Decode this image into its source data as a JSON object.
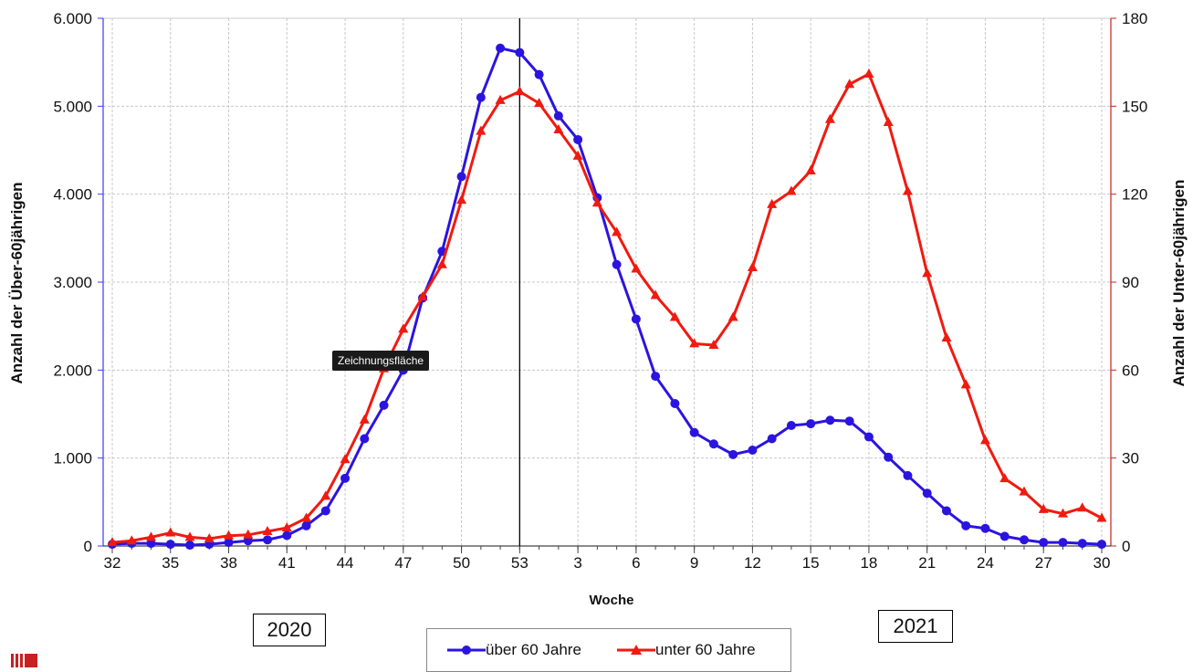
{
  "chart_data": {
    "type": "line",
    "xlabel": "Woche",
    "y_left_label": "Anzahl der Über-60jährigen",
    "y_right_label": "Anzahl der Unter-60jährigen",
    "y_left_range": [
      0,
      6000
    ],
    "y_right_range": [
      0,
      180
    ],
    "y_left_ticks": [
      "0",
      "1.000",
      "2.000",
      "3.000",
      "4.000",
      "5.000",
      "6.000"
    ],
    "y_right_ticks": [
      "0",
      "30",
      "60",
      "90",
      "120",
      "150",
      "180"
    ],
    "grid": true,
    "legend_position": "bottom-center",
    "weeks": [
      "32",
      "33",
      "34",
      "35",
      "36",
      "37",
      "38",
      "39",
      "40",
      "41",
      "42",
      "43",
      "44",
      "45",
      "46",
      "47",
      "48",
      "49",
      "50",
      "51",
      "52",
      "53",
      "1",
      "2",
      "3",
      "4",
      "5",
      "6",
      "7",
      "8",
      "9",
      "10",
      "11",
      "12",
      "13",
      "14",
      "15",
      "16",
      "17",
      "18",
      "19",
      "20",
      "21",
      "22",
      "23",
      "24",
      "25",
      "26",
      "27",
      "28",
      "29",
      "30"
    ],
    "x_tick_labels": [
      "32",
      "35",
      "38",
      "41",
      "44",
      "47",
      "50",
      "53",
      "3",
      "6",
      "9",
      "12",
      "15",
      "18",
      "21",
      "24",
      "27",
      "30"
    ],
    "series": [
      {
        "name": "über 60 Jahre",
        "color": "#2b14e0",
        "marker": "circle",
        "axis": "left",
        "values": [
          20,
          30,
          30,
          20,
          10,
          20,
          40,
          60,
          70,
          120,
          230,
          400,
          770,
          1220,
          1600,
          2000,
          2820,
          3350,
          4200,
          5100,
          5660,
          5610,
          5360,
          4890,
          4620,
          3960,
          3200,
          2580,
          1930,
          1620,
          1290,
          1160,
          1040,
          1090,
          1220,
          1370,
          1390,
          1430,
          1420,
          1240,
          1010,
          800,
          600,
          400,
          230,
          200,
          110,
          70,
          40,
          40,
          30,
          20
        ]
      },
      {
        "name": "unter 60 Jahre",
        "color": "#f01a10",
        "marker": "triangle",
        "axis": "right",
        "values": [
          1.2,
          1.8,
          3.0,
          4.5,
          3.0,
          2.5,
          3.5,
          3.8,
          5.0,
          6.2,
          9.5,
          17.0,
          29.5,
          43.0,
          60.5,
          74.0,
          85.0,
          96.0,
          118.0,
          141.5,
          152.0,
          155.0,
          151.0,
          142.0,
          133.0,
          117.0,
          107.0,
          94.5,
          85.5,
          78.0,
          69.0,
          68.5,
          78.0,
          95.0,
          116.5,
          121.0,
          128.0,
          145.5,
          157.5,
          161.0,
          144.5,
          121.0,
          93.0,
          71.0,
          55.0,
          36.0,
          23.0,
          18.5,
          12.5,
          11.0,
          13.0,
          9.5
        ]
      }
    ],
    "annotations": [
      "2020",
      "2021"
    ]
  },
  "tooltip": "Zeichnungsfläche",
  "years": {
    "left": "2020",
    "right": "2021"
  },
  "colors": {
    "left_axis": "#3a3aff",
    "right_axis": "#c82020",
    "marker_line": "#000000"
  },
  "logo_icon": "institution-logo-icon"
}
